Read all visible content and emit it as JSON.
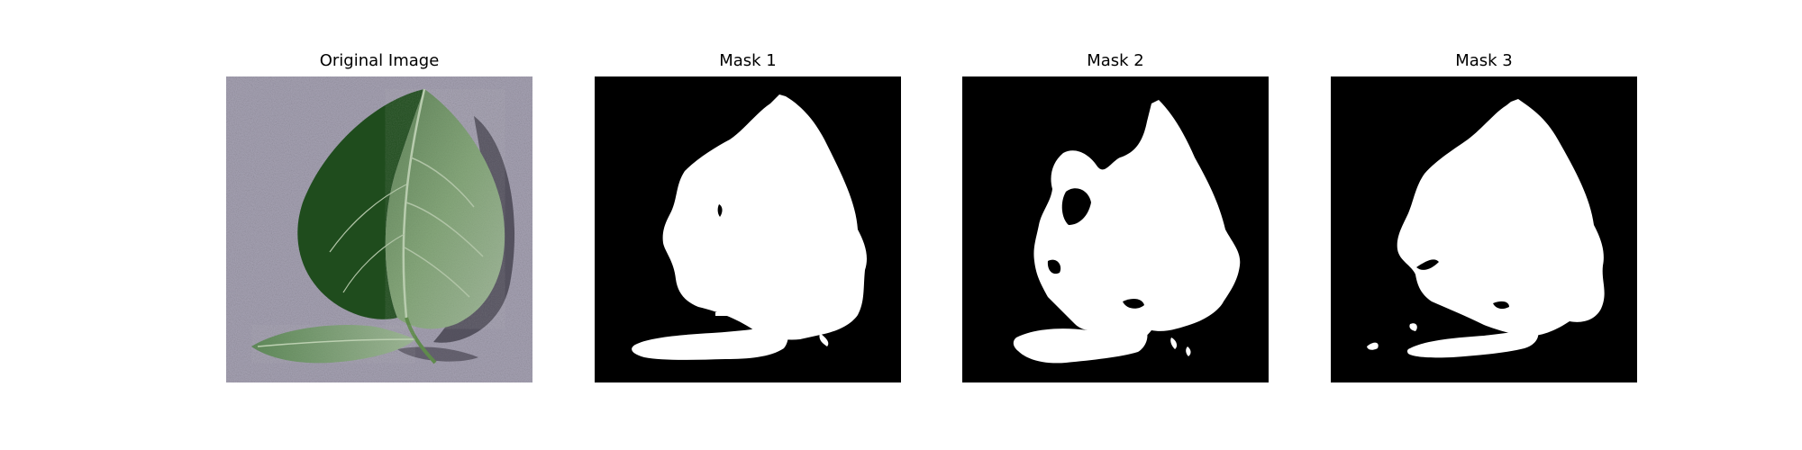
{
  "panels": [
    {
      "title": "Original Image"
    },
    {
      "title": "Mask 1"
    },
    {
      "title": "Mask 2"
    },
    {
      "title": "Mask 3"
    }
  ],
  "colors": {
    "background": "#ffffff",
    "mask_background": "#000000",
    "mask_foreground": "#ffffff",
    "surface": "#8c8796",
    "leaf_dark": "#1f4a1c",
    "leaf_mid": "#4f7c43",
    "leaf_light": "#9bb38d"
  }
}
